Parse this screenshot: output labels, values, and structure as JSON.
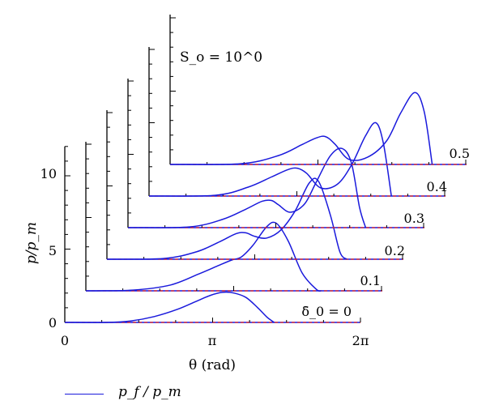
{
  "chart_data": {
    "type": "line",
    "layout": "waterfall",
    "xlabel": "θ (rad)",
    "ylabel": "p/p_m",
    "xlim": [
      0,
      6.2832
    ],
    "ylim": [
      0,
      12
    ],
    "x_tick_labels": [
      "0",
      "π",
      "2π"
    ],
    "y_tick_labels": [
      "0",
      "5",
      "10"
    ],
    "annotation": "S_o = 10^0",
    "depth_parameter": "δ̄_0",
    "depth_labels": [
      "δ̄_0 = 0",
      "0.1",
      "0.2",
      "0.3",
      "0.4",
      "0.5"
    ],
    "legend": [
      {
        "label": "p_f / p_m",
        "color": "#1a1adc"
      }
    ],
    "series": [
      {
        "name": "δ̄_0 = 0",
        "x": [
          0.0,
          0.9,
          1.4,
          1.9,
          2.4,
          2.8,
          3.1,
          3.35,
          3.6,
          3.85,
          4.1,
          4.3,
          4.45
        ],
        "y": [
          0.0,
          0.0,
          0.1,
          0.4,
          0.9,
          1.45,
          1.85,
          2.05,
          2.0,
          1.7,
          1.0,
          0.35,
          0.0
        ]
      },
      {
        "name": "0.1",
        "x": [
          0.0,
          1.0,
          1.8,
          2.4,
          2.8,
          3.1,
          3.3,
          3.55,
          3.85,
          4.05,
          4.3,
          4.6,
          4.9,
          5.0
        ],
        "y": [
          0.0,
          0.05,
          0.4,
          1.15,
          1.7,
          2.1,
          2.3,
          3.1,
          4.4,
          4.6,
          3.4,
          1.2,
          0.1,
          0.0
        ]
      },
      {
        "name": "0.2",
        "x": [
          0.0,
          1.2,
          1.9,
          2.4,
          2.75,
          2.95,
          3.15,
          3.4,
          3.7,
          4.0,
          4.3,
          4.5,
          4.75,
          4.95,
          5.1
        ],
        "y": [
          0.0,
          0.05,
          0.5,
          1.2,
          1.75,
          1.8,
          1.55,
          1.45,
          2.0,
          3.3,
          5.2,
          5.3,
          3.0,
          0.5,
          0.0
        ]
      },
      {
        "name": "0.3",
        "x": [
          0.0,
          1.3,
          2.0,
          2.5,
          2.85,
          3.05,
          3.2,
          3.45,
          3.75,
          4.0,
          4.3,
          4.55,
          4.75,
          4.92,
          5.05
        ],
        "y": [
          0.0,
          0.05,
          0.55,
          1.25,
          1.8,
          1.85,
          1.55,
          1.05,
          1.6,
          3.1,
          4.9,
          5.4,
          4.4,
          1.4,
          0.0
        ]
      },
      {
        "name": "0.4",
        "x": [
          0.0,
          1.4,
          2.1,
          2.6,
          2.95,
          3.15,
          3.35,
          3.65,
          4.0,
          4.3,
          4.6,
          4.82,
          4.98,
          5.15
        ],
        "y": [
          0.0,
          0.05,
          0.6,
          1.3,
          1.8,
          1.9,
          1.55,
          0.55,
          0.8,
          2.1,
          4.1,
          5.0,
          3.6,
          0.0
        ]
      },
      {
        "name": "0.5",
        "x": [
          0.0,
          1.5,
          2.3,
          2.8,
          3.1,
          3.3,
          3.5,
          3.8,
          4.2,
          4.6,
          4.9,
          5.2,
          5.4,
          5.57
        ],
        "y": [
          0.0,
          0.05,
          0.6,
          1.35,
          1.8,
          1.9,
          1.4,
          0.35,
          0.5,
          1.6,
          3.5,
          4.9,
          3.6,
          0.0
        ]
      }
    ]
  }
}
